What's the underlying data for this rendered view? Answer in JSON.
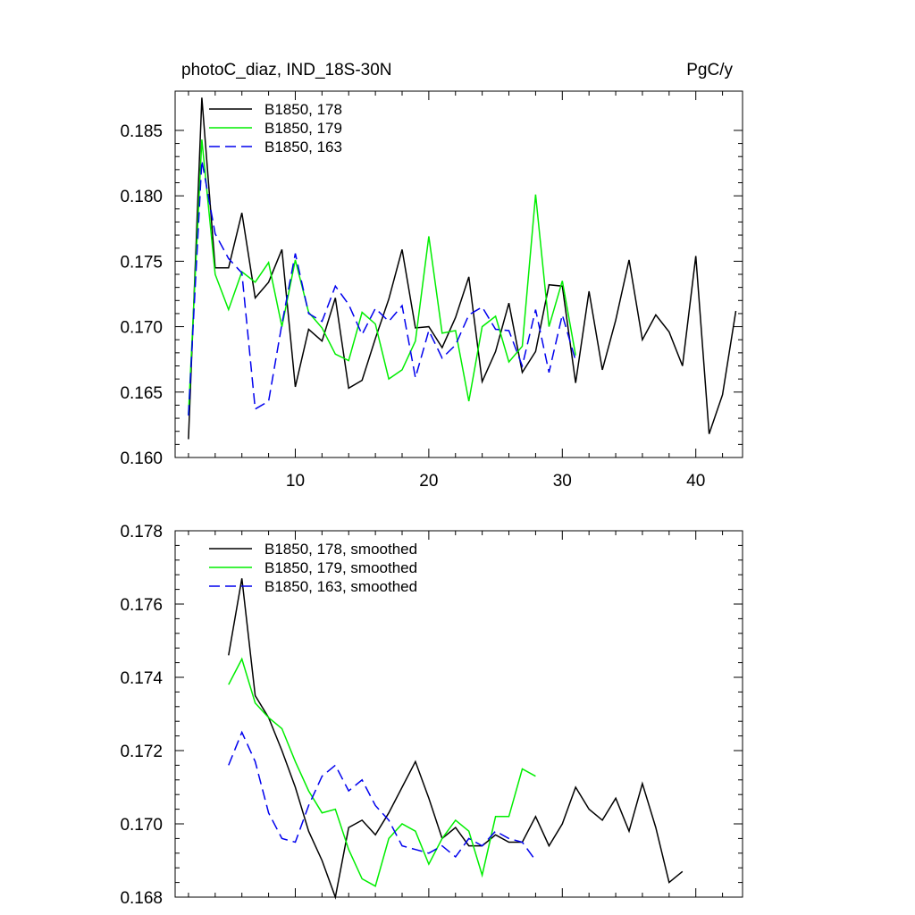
{
  "colors": {
    "s178": "#000000",
    "s179": "#00ee00",
    "s163": "#0000ee"
  },
  "chart_data": [
    {
      "type": "line",
      "title": "photoC_diaz, IND_18S-30N",
      "units": "PgC/y",
      "xlim": [
        1,
        43.5
      ],
      "ylim": [
        0.16,
        0.188
      ],
      "xticks": [
        10,
        20,
        30,
        40
      ],
      "xtick_labels": [
        "10",
        "20",
        "30",
        "40"
      ],
      "yticks": [
        0.16,
        0.165,
        0.17,
        0.175,
        0.18,
        0.185
      ],
      "ytick_labels": [
        "0.160",
        "0.165",
        "0.170",
        "0.175",
        "0.180",
        "0.185"
      ],
      "legend_position": "top-left",
      "series": [
        {
          "name": "B1850, 178",
          "color": "#000000",
          "dash": "solid",
          "x_start": 2,
          "values": [
            0.1614,
            0.1875,
            0.1745,
            0.1745,
            0.1787,
            0.1722,
            0.1734,
            0.1759,
            0.1654,
            0.1698,
            0.1689,
            0.1722,
            0.1653,
            0.1659,
            0.1691,
            0.1721,
            0.1759,
            0.1699,
            0.17,
            0.1684,
            0.1707,
            0.1738,
            0.1658,
            0.1681,
            0.1718,
            0.1665,
            0.1681,
            0.1732,
            0.1731,
            0.1657,
            0.1727,
            0.1667,
            0.1705,
            0.1751,
            0.169,
            0.1709,
            0.1696,
            0.167,
            0.1754,
            0.1618,
            0.1648,
            0.1712
          ]
        },
        {
          "name": "B1850, 179",
          "color": "#00ee00",
          "dash": "solid",
          "x_start": 2,
          "values": [
            0.1633,
            0.1843,
            0.174,
            0.1713,
            0.1742,
            0.1734,
            0.1749,
            0.17,
            0.1751,
            0.1711,
            0.1699,
            0.1679,
            0.1674,
            0.1711,
            0.1702,
            0.166,
            0.1667,
            0.1689,
            0.1769,
            0.1695,
            0.1697,
            0.1643,
            0.17,
            0.1708,
            0.1673,
            0.1685,
            0.1801,
            0.17,
            0.1735,
            0.1678
          ]
        },
        {
          "name": "B1850, 163",
          "color": "#0000ee",
          "dash": "dashed",
          "x_start": 2,
          "values": [
            0.1632,
            0.1827,
            0.1771,
            0.1752,
            0.1741,
            0.1637,
            0.1643,
            0.1702,
            0.1756,
            0.171,
            0.1704,
            0.1731,
            0.1717,
            0.1694,
            0.1714,
            0.1704,
            0.1716,
            0.1661,
            0.1697,
            0.1676,
            0.1686,
            0.1709,
            0.1715,
            0.1698,
            0.1697,
            0.167,
            0.1713,
            0.1665,
            0.1709,
            0.1674
          ]
        }
      ]
    },
    {
      "type": "line",
      "title": "",
      "units": "",
      "xlim": [
        1,
        43.5
      ],
      "ylim": [
        0.168,
        0.178
      ],
      "xticks": [
        10,
        20,
        30,
        40
      ],
      "xtick_labels": [],
      "yticks": [
        0.168,
        0.17,
        0.172,
        0.174,
        0.176,
        0.178
      ],
      "ytick_labels": [
        "0.168",
        "0.170",
        "0.172",
        "0.174",
        "0.176",
        "0.178"
      ],
      "legend_position": "top-left",
      "series": [
        {
          "name": "B1850, 178, smoothed",
          "color": "#000000",
          "dash": "solid",
          "x_start": 5,
          "values": [
            0.1746,
            0.1767,
            0.1735,
            0.1729,
            0.172,
            0.171,
            0.1698,
            0.169,
            0.168,
            0.1699,
            0.1701,
            0.1697,
            0.1703,
            0.171,
            0.1717,
            0.1707,
            0.1696,
            0.1699,
            0.1694,
            0.1694,
            0.1697,
            0.1695,
            0.1695,
            0.1702,
            0.1694,
            0.17,
            0.171,
            0.1704,
            0.1701,
            0.1707,
            0.1698,
            0.1711,
            0.1699,
            0.1684,
            0.1687
          ]
        },
        {
          "name": "B1850, 179, smoothed",
          "color": "#00ee00",
          "dash": "solid",
          "x_start": 5,
          "values": [
            0.1738,
            0.1745,
            0.1733,
            0.1729,
            0.1726,
            0.1717,
            0.1709,
            0.1703,
            0.1704,
            0.1693,
            0.1685,
            0.1683,
            0.1696,
            0.17,
            0.1698,
            0.1689,
            0.1696,
            0.1701,
            0.1698,
            0.1686,
            0.1702,
            0.1702,
            0.1715,
            0.1713
          ]
        },
        {
          "name": "B1850, 163, smoothed",
          "color": "#0000ee",
          "dash": "dashed",
          "x_start": 5,
          "values": [
            0.1716,
            0.1725,
            0.1717,
            0.1703,
            0.1696,
            0.1695,
            0.1705,
            0.1713,
            0.1716,
            0.1709,
            0.1712,
            0.1705,
            0.1701,
            0.1694,
            0.1693,
            0.1692,
            0.1694,
            0.1691,
            0.1696,
            0.1694,
            0.1698,
            0.1696,
            0.1695,
            0.169
          ]
        }
      ]
    }
  ]
}
